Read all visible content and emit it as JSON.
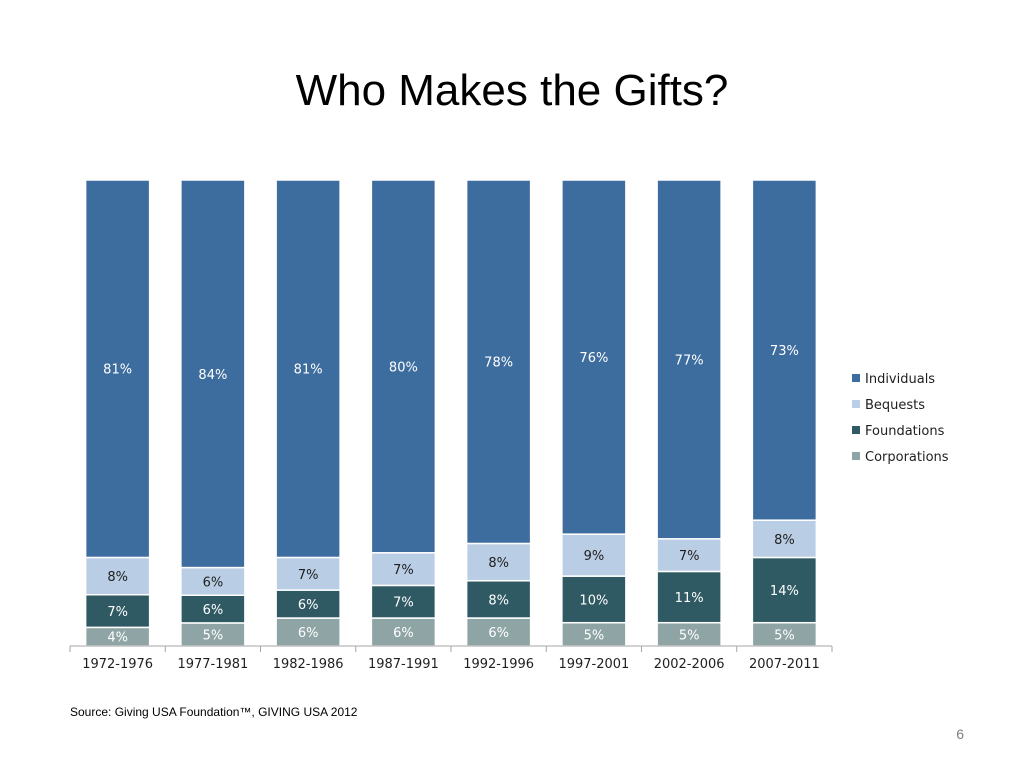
{
  "slide": {
    "title": "Who Makes the Gifts?",
    "source": "Source: Giving USA Foundation™, GIVING USA 2012",
    "page_number": "6"
  },
  "chart_data": {
    "type": "bar",
    "stacked": true,
    "percent_stacked": true,
    "title": "",
    "xlabel": "",
    "ylabel": "",
    "categories": [
      "1972-1976",
      "1977-1981",
      "1982-1986",
      "1987-1991",
      "1992-1996",
      "1997-2001",
      "2002-2006",
      "2007-2011"
    ],
    "series": [
      {
        "name": "Corporations",
        "color": "#8fa5a5",
        "values": [
          4,
          5,
          6,
          6,
          6,
          5,
          5,
          5
        ],
        "labels": [
          "4%",
          "5%",
          "6%",
          "6%",
          "6%",
          "5%",
          "5%",
          "5%"
        ]
      },
      {
        "name": "Foundations",
        "color": "#2f5a63",
        "values": [
          7,
          6,
          6,
          7,
          8,
          10,
          11,
          14
        ],
        "labels": [
          "7%",
          "6%",
          "6%",
          "7%",
          "8%",
          "10%",
          "11%",
          "14%"
        ]
      },
      {
        "name": "Bequests",
        "color": "#b9cde5",
        "values": [
          8,
          6,
          7,
          7,
          8,
          9,
          7,
          8
        ],
        "labels": [
          "8%",
          "6%",
          "7%",
          "7%",
          "8%",
          "9%",
          "7%",
          "8%"
        ]
      },
      {
        "name": "Individuals",
        "color": "#3d6c9e",
        "values": [
          81,
          84,
          81,
          80,
          78,
          76,
          77,
          73
        ],
        "labels": [
          "81%",
          "84%",
          "81%",
          "80%",
          "78%",
          "76%",
          "77%",
          "73%"
        ]
      }
    ],
    "legend_order": [
      "Individuals",
      "Bequests",
      "Foundations",
      "Corporations"
    ],
    "legend_position": "right",
    "grid": false
  }
}
